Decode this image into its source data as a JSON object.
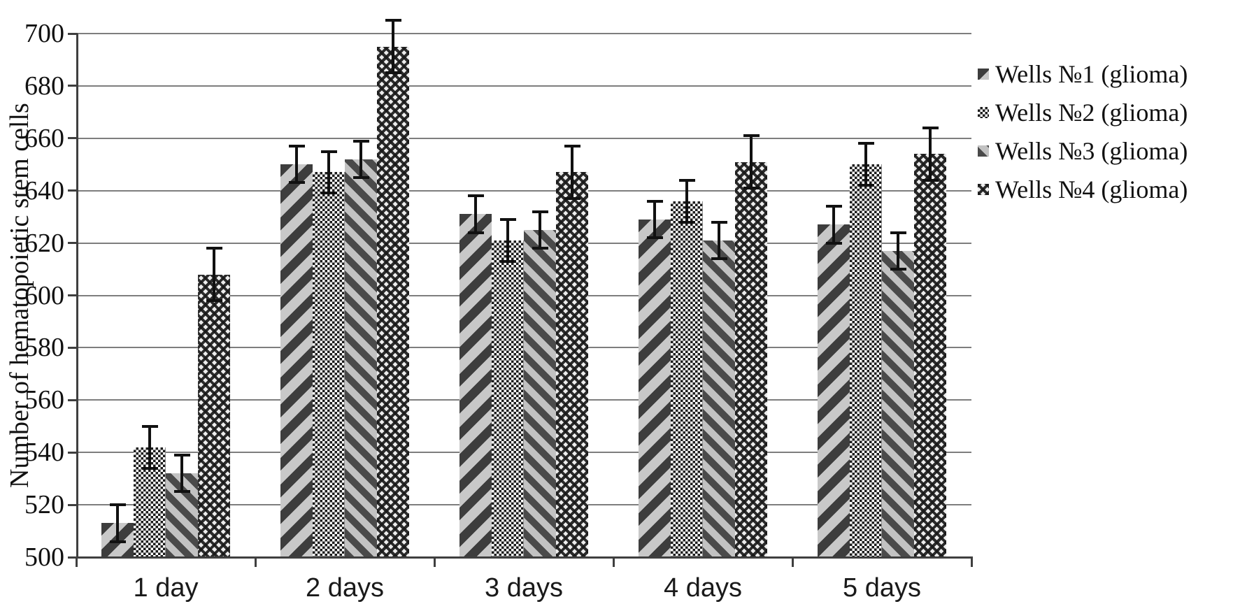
{
  "chart_data": {
    "type": "bar",
    "title": "",
    "categories": [
      "1 day",
      "2 days",
      "3 days",
      "4 days",
      "5 days"
    ],
    "series": [
      {
        "name": "Wells №1 (glioma)",
        "pattern": "diagonal-up-stripes",
        "values": [
          513,
          650,
          631,
          629,
          627
        ],
        "errors": [
          7,
          7,
          7,
          7,
          7
        ]
      },
      {
        "name": "Wells №2 (glioma)",
        "pattern": "fine-checkerboard",
        "values": [
          542,
          647,
          621,
          636,
          650
        ],
        "errors": [
          8,
          8,
          8,
          8,
          8
        ]
      },
      {
        "name": "Wells №3 (glioma)",
        "pattern": "diagonal-down-stripes",
        "values": [
          532,
          652,
          625,
          621,
          617
        ],
        "errors": [
          7,
          7,
          7,
          7,
          7
        ]
      },
      {
        "name": "Wells №4 (glioma)",
        "pattern": "diamond-checkerboard",
        "values": [
          608,
          695,
          647,
          651,
          654
        ],
        "errors": [
          10,
          10,
          10,
          10,
          10
        ]
      }
    ],
    "xlabel": "",
    "ylabel": "Number of hematopoietic stem cells",
    "ylim": [
      500,
      700
    ],
    "ytick_step": 20,
    "yticks": [
      500,
      520,
      540,
      560,
      580,
      600,
      620,
      640,
      660,
      680,
      700
    ],
    "grid": true,
    "error_bars": true,
    "legend_position": "right"
  },
  "colors": {
    "background": "#ffffff",
    "gridline": "#7e7e7e",
    "axis": "#3f3f3f",
    "text": "#111111",
    "error_bar": "#111111",
    "stripe_dark": "#3d3d3d",
    "stripe_light": "#c8c8c8",
    "checker_dark": "#1c1c1c"
  }
}
